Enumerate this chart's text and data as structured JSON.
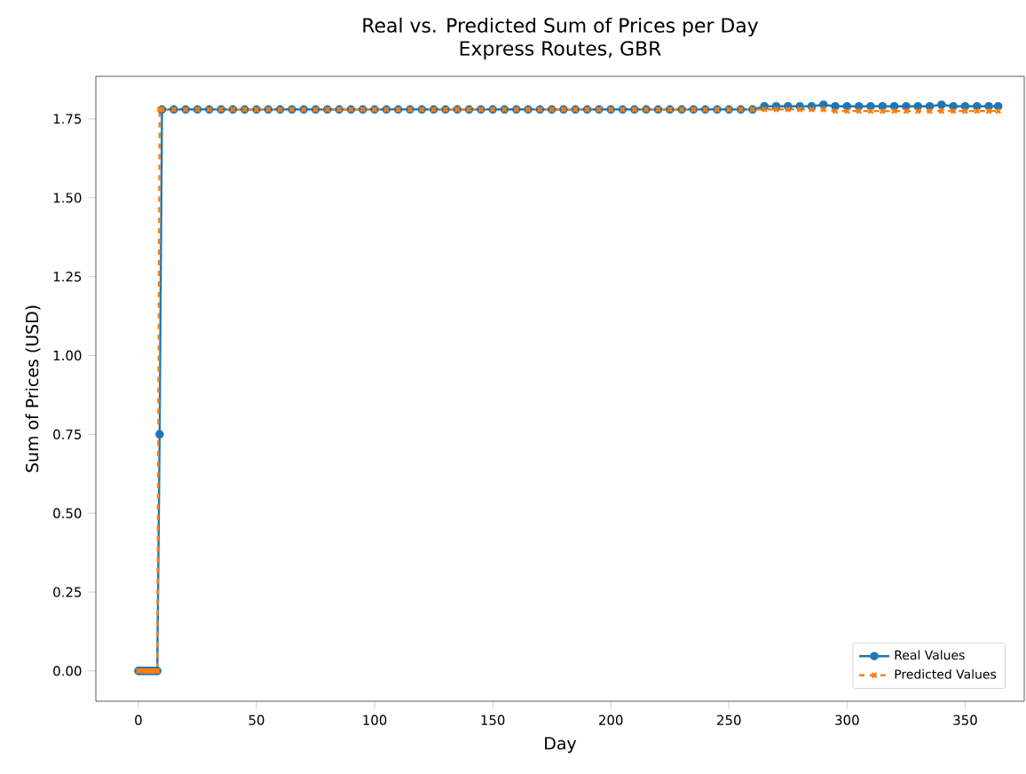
{
  "chart_data": {
    "type": "line",
    "title": "Real vs. Predicted Sum of Prices per Day",
    "subtitle": "Express Routes, GBR",
    "xlabel": "Day",
    "ylabel": "Sum of Prices (USD)",
    "x": [
      0,
      1,
      2,
      3,
      4,
      5,
      6,
      7,
      8,
      9,
      10,
      15,
      20,
      25,
      30,
      35,
      40,
      45,
      50,
      55,
      60,
      65,
      70,
      75,
      80,
      85,
      90,
      95,
      100,
      105,
      110,
      115,
      120,
      125,
      130,
      135,
      140,
      145,
      150,
      155,
      160,
      165,
      170,
      175,
      180,
      185,
      190,
      195,
      200,
      205,
      210,
      215,
      220,
      225,
      230,
      235,
      240,
      245,
      250,
      255,
      260,
      265,
      270,
      275,
      280,
      285,
      290,
      295,
      300,
      305,
      310,
      315,
      320,
      325,
      330,
      335,
      340,
      345,
      350,
      355,
      360,
      364
    ],
    "series": [
      {
        "name": "Real Values",
        "color": "#1f77b4",
        "marker": "circle",
        "line_style": "solid",
        "values": [
          0,
          0,
          0,
          0,
          0,
          0,
          0,
          0,
          0,
          0.75,
          1.78,
          1.78,
          1.78,
          1.78,
          1.78,
          1.78,
          1.78,
          1.78,
          1.78,
          1.78,
          1.78,
          1.78,
          1.78,
          1.78,
          1.78,
          1.78,
          1.78,
          1.78,
          1.78,
          1.78,
          1.78,
          1.78,
          1.78,
          1.78,
          1.78,
          1.78,
          1.78,
          1.78,
          1.78,
          1.78,
          1.78,
          1.78,
          1.78,
          1.78,
          1.78,
          1.78,
          1.78,
          1.78,
          1.78,
          1.78,
          1.78,
          1.78,
          1.78,
          1.78,
          1.78,
          1.78,
          1.78,
          1.78,
          1.78,
          1.78,
          1.78,
          1.79,
          1.79,
          1.79,
          1.79,
          1.79,
          1.795,
          1.79,
          1.79,
          1.79,
          1.79,
          1.79,
          1.79,
          1.79,
          1.79,
          1.79,
          1.795,
          1.79,
          1.79,
          1.79,
          1.79,
          1.79
        ]
      },
      {
        "name": "Predicted Values",
        "color": "#ff7f0e",
        "marker": "cross",
        "line_style": "dashed",
        "values": [
          0,
          0,
          0,
          0,
          0,
          0,
          0,
          0,
          0,
          1.78,
          1.78,
          1.78,
          1.78,
          1.78,
          1.78,
          1.78,
          1.78,
          1.78,
          1.78,
          1.78,
          1.78,
          1.78,
          1.78,
          1.78,
          1.78,
          1.78,
          1.78,
          1.78,
          1.78,
          1.78,
          1.78,
          1.78,
          1.78,
          1.78,
          1.78,
          1.78,
          1.78,
          1.78,
          1.78,
          1.78,
          1.78,
          1.78,
          1.78,
          1.78,
          1.78,
          1.78,
          1.78,
          1.78,
          1.78,
          1.78,
          1.78,
          1.78,
          1.78,
          1.78,
          1.78,
          1.78,
          1.78,
          1.78,
          1.78,
          1.78,
          1.78,
          1.78,
          1.78,
          1.78,
          1.78,
          1.78,
          1.78,
          1.775,
          1.775,
          1.775,
          1.775,
          1.775,
          1.775,
          1.775,
          1.775,
          1.775,
          1.775,
          1.775,
          1.775,
          1.775,
          1.775,
          1.775
        ]
      }
    ],
    "xlim": [
      -18,
      375
    ],
    "ylim": [
      -0.096,
      1.885
    ],
    "xticks": [
      0,
      50,
      100,
      150,
      200,
      250,
      300,
      350
    ],
    "yticks": [
      {
        "value": 0,
        "label": "0.00"
      },
      {
        "value": 0.25,
        "label": "0.25"
      },
      {
        "value": 0.5,
        "label": "0.50"
      },
      {
        "value": 0.75,
        "label": "0.75"
      },
      {
        "value": 1.0,
        "label": "1.00"
      },
      {
        "value": 1.25,
        "label": "1.25"
      },
      {
        "value": 1.5,
        "label": "1.50"
      },
      {
        "value": 1.75,
        "label": "1.75"
      }
    ],
    "grid": false,
    "legend": "bottom right"
  }
}
